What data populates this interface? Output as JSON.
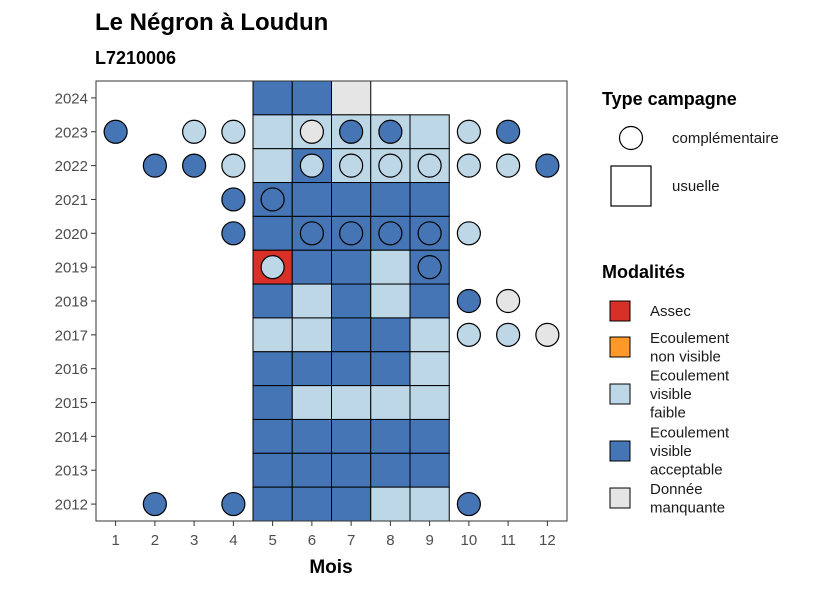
{
  "chart_data": {
    "type": "heatmap",
    "title": "Le Négron à Loudun",
    "subtitle": "L7210006",
    "xlabel": "Mois",
    "ylabel": "",
    "x_ticks": [
      1,
      2,
      3,
      4,
      5,
      6,
      7,
      8,
      9,
      10,
      11,
      12
    ],
    "y_ticks": [
      2012,
      2013,
      2014,
      2015,
      2016,
      2017,
      2018,
      2019,
      2020,
      2021,
      2022,
      2023,
      2024
    ],
    "xlim": [
      0.5,
      12.5
    ],
    "ylim": [
      2011.5,
      2024.5
    ],
    "grid": false,
    "colors": {
      "assec": "#d73027",
      "non_visible": "#fe9929",
      "faible": "#bdd7e7",
      "acceptable": "#4575b4",
      "manquante": "#e5e5e5"
    },
    "legend_shape": {
      "title": "Type campagne",
      "entries": [
        {
          "key": "complementaire",
          "label": "complémentaire",
          "shape": "circle"
        },
        {
          "key": "usuelle",
          "label": "usuelle",
          "shape": "square"
        }
      ]
    },
    "legend_color": {
      "title": "Modalités",
      "entries": [
        {
          "key": "assec",
          "lines": [
            "Assec"
          ]
        },
        {
          "key": "non_visible",
          "lines": [
            "Ecoulement",
            "non visible"
          ]
        },
        {
          "key": "faible",
          "lines": [
            "Ecoulement",
            "visible",
            "faible"
          ]
        },
        {
          "key": "acceptable",
          "lines": [
            "Ecoulement",
            "visible",
            "acceptable"
          ]
        },
        {
          "key": "manquante",
          "lines": [
            "Donnée",
            "manquante"
          ]
        }
      ]
    },
    "usuelle": [
      {
        "year": 2024,
        "values": {
          "5": "acceptable",
          "6": "acceptable",
          "7": "manquante"
        }
      },
      {
        "year": 2023,
        "values": {
          "5": "faible",
          "6": "faible",
          "7": "faible",
          "8": "faible",
          "9": "faible"
        }
      },
      {
        "year": 2022,
        "values": {
          "5": "faible",
          "6": "acceptable",
          "7": "faible",
          "8": "faible",
          "9": "faible"
        }
      },
      {
        "year": 2021,
        "values": {
          "5": "acceptable",
          "6": "acceptable",
          "7": "acceptable",
          "8": "acceptable",
          "9": "acceptable"
        }
      },
      {
        "year": 2020,
        "values": {
          "5": "acceptable",
          "6": "acceptable",
          "7": "acceptable",
          "8": "acceptable",
          "9": "acceptable"
        }
      },
      {
        "year": 2019,
        "values": {
          "5": "assec",
          "6": "acceptable",
          "7": "acceptable",
          "8": "faible",
          "9": "acceptable"
        }
      },
      {
        "year": 2018,
        "values": {
          "5": "acceptable",
          "6": "faible",
          "7": "acceptable",
          "8": "faible",
          "9": "acceptable"
        }
      },
      {
        "year": 2017,
        "values": {
          "5": "faible",
          "6": "faible",
          "7": "acceptable",
          "8": "acceptable",
          "9": "faible"
        }
      },
      {
        "year": 2016,
        "values": {
          "5": "acceptable",
          "6": "acceptable",
          "7": "acceptable",
          "8": "acceptable",
          "9": "faible"
        }
      },
      {
        "year": 2015,
        "values": {
          "5": "acceptable",
          "6": "faible",
          "7": "faible",
          "8": "faible",
          "9": "faible"
        }
      },
      {
        "year": 2014,
        "values": {
          "5": "acceptable",
          "6": "acceptable",
          "7": "acceptable",
          "8": "acceptable",
          "9": "acceptable"
        }
      },
      {
        "year": 2013,
        "values": {
          "5": "acceptable",
          "6": "acceptable",
          "7": "acceptable",
          "8": "acceptable",
          "9": "acceptable"
        }
      },
      {
        "year": 2012,
        "values": {
          "5": "acceptable",
          "6": "acceptable",
          "7": "acceptable",
          "8": "faible",
          "9": "faible"
        }
      }
    ],
    "complementaire": [
      {
        "year": 2023,
        "values": {
          "1": "acceptable",
          "3": "faible",
          "4": "faible",
          "6": "manquante",
          "7": "acceptable",
          "8": "acceptable",
          "10": "faible",
          "11": "acceptable"
        }
      },
      {
        "year": 2022,
        "values": {
          "2": "acceptable",
          "3": "acceptable",
          "4": "faible",
          "6": "faible",
          "7": "faible",
          "8": "faible",
          "9": "faible",
          "10": "faible",
          "11": "faible",
          "12": "acceptable"
        }
      },
      {
        "year": 2021,
        "values": {
          "4": "acceptable",
          "5": "acceptable"
        }
      },
      {
        "year": 2020,
        "values": {
          "4": "acceptable",
          "6": "acceptable",
          "7": "acceptable",
          "8": "acceptable",
          "9": "acceptable",
          "10": "faible"
        }
      },
      {
        "year": 2019,
        "values": {
          "5": "faible",
          "9": "acceptable"
        }
      },
      {
        "year": 2018,
        "values": {
          "10": "acceptable",
          "11": "manquante"
        }
      },
      {
        "year": 2017,
        "values": {
          "10": "faible",
          "11": "faible",
          "12": "manquante"
        }
      },
      {
        "year": 2012,
        "values": {
          "2": "acceptable",
          "4": "acceptable",
          "10": "acceptable"
        }
      }
    ]
  }
}
